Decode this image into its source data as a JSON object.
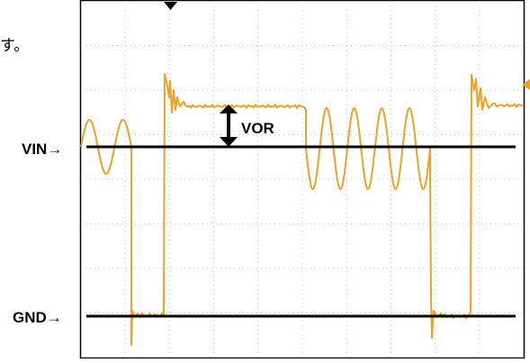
{
  "text": {
    "top_fragment": "す。",
    "vin": "VIN→",
    "gnd": "GND→",
    "vor": "VOR"
  },
  "colors": {
    "trace": "#f2a025",
    "frame": "#000000",
    "grid": "#c8c8c8",
    "reference_line": "#000000"
  }
}
